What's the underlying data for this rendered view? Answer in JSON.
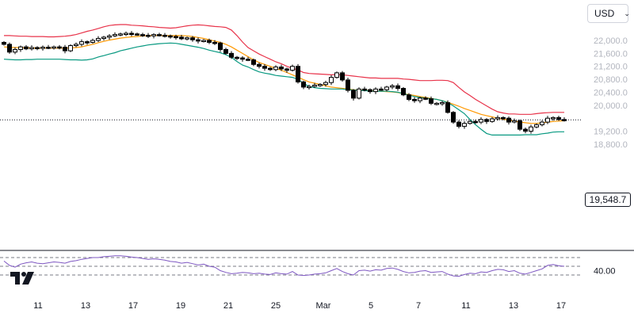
{
  "currency_selector": {
    "value": "USD",
    "icon": "chevron-down-icon"
  },
  "last_price_label": "19,548.7",
  "colors": {
    "candle": "#000000",
    "upper_band": "#e8334a",
    "middle_band": "#ff9800",
    "lower_band": "#089981",
    "rsi_line": "#7e57c2",
    "grid_text": "#b2b5be",
    "divider": "#131722"
  },
  "chart_data": [
    {
      "type": "candlestick",
      "indicator": "Bollinger Bands",
      "y_ticks": [
        "22,000.0",
        "21,600.0",
        "21,200.0",
        "20,800.0",
        "20,400.0",
        "20,000.0",
        "19,200.0",
        "18,800.0"
      ],
      "ylim": [
        18800,
        22400
      ],
      "x_ticks": [
        "11",
        "13",
        "17",
        "19",
        "21",
        "25",
        "Mar",
        "5",
        "7",
        "11",
        "13",
        "17"
      ],
      "last_price": 19548.7,
      "close": [
        21880,
        21640,
        21720,
        21800,
        21740,
        21780,
        21760,
        21790,
        21770,
        21800,
        21790,
        21680,
        21840,
        21880,
        21960,
        21940,
        22000,
        22060,
        22100,
        22140,
        22180,
        22200,
        22220,
        22200,
        22180,
        22160,
        22140,
        22180,
        22160,
        22140,
        22120,
        22100,
        22050,
        22080,
        22020,
        21980,
        22000,
        21940,
        21920,
        21720,
        21600,
        21480,
        21460,
        21420,
        21400,
        21260,
        21200,
        21140,
        21100,
        21180,
        21120,
        21080,
        21200,
        20720,
        20560,
        20580,
        20620,
        20640,
        20700,
        20860,
        21000,
        20780,
        20460,
        20220,
        20500,
        20480,
        20420,
        20500,
        20480,
        20560,
        20600,
        20520,
        20320,
        20180,
        20140,
        20220,
        20200,
        20060,
        20060,
        20080,
        19780,
        19480,
        19350,
        19440,
        19500,
        19480,
        19560,
        19500,
        19580,
        19620,
        19600,
        19480,
        19520,
        19260,
        19200,
        19330,
        19400,
        19480,
        19600,
        19620,
        19560,
        19550
      ],
      "upper_band": [
        22150,
        22150,
        22140,
        22130,
        22130,
        22120,
        22120,
        22120,
        22110,
        22110,
        22120,
        22130,
        22150,
        22180,
        22230,
        22280,
        22320,
        22370,
        22420,
        22460,
        22480,
        22490,
        22490,
        22470,
        22460,
        22450,
        22430,
        22420,
        22400,
        22390,
        22380,
        22390,
        22420,
        22450,
        22470,
        22480,
        22470,
        22450,
        22430,
        22420,
        22400,
        22320,
        22150,
        21950,
        21780,
        21680,
        21580,
        21500,
        21420,
        21340,
        21280,
        21200,
        21140,
        21090,
        21010,
        20980,
        20970,
        20960,
        20950,
        20940,
        20940,
        20940,
        20920,
        20900,
        20880,
        20860,
        20840,
        20840,
        20830,
        20830,
        20830,
        20830,
        20810,
        20800,
        20780,
        20760,
        20760,
        20760,
        20770,
        20770,
        20760,
        20700,
        20550,
        20410,
        20300,
        20180,
        20080,
        19980,
        19880,
        19800,
        19760,
        19730,
        19730,
        19720,
        19720,
        19720,
        19740,
        19760,
        19770,
        19780,
        19780,
        19780
      ],
      "middle_band": [
        21800,
        21790,
        21780,
        21780,
        21770,
        21770,
        21760,
        21760,
        21760,
        21760,
        21760,
        21760,
        21770,
        21780,
        21800,
        21840,
        21880,
        21930,
        21970,
        22010,
        22040,
        22070,
        22090,
        22110,
        22120,
        22140,
        22150,
        22150,
        22150,
        22150,
        22150,
        22150,
        22150,
        22140,
        22120,
        22090,
        22060,
        22020,
        21980,
        21940,
        21880,
        21800,
        21700,
        21600,
        21500,
        21400,
        21320,
        21260,
        21200,
        21140,
        21080,
        21010,
        20940,
        20860,
        20790,
        20720,
        20680,
        20640,
        20600,
        20560,
        20540,
        20520,
        20500,
        20480,
        20470,
        20460,
        20450,
        20440,
        20430,
        20420,
        20410,
        20390,
        20360,
        20330,
        20300,
        20270,
        20240,
        20210,
        20180,
        20140,
        20090,
        20030,
        19970,
        19900,
        19840,
        19780,
        19720,
        19680,
        19640,
        19600,
        19570,
        19540,
        19510,
        19480,
        19460,
        19440,
        19440,
        19460,
        19480,
        19500,
        19510,
        19520
      ],
      "lower_band": [
        21420,
        21410,
        21400,
        21400,
        21410,
        21410,
        21420,
        21420,
        21420,
        21420,
        21420,
        21410,
        21400,
        21400,
        21390,
        21400,
        21430,
        21490,
        21530,
        21580,
        21620,
        21680,
        21720,
        21760,
        21800,
        21830,
        21860,
        21880,
        21900,
        21910,
        21920,
        21910,
        21880,
        21850,
        21820,
        21790,
        21750,
        21700,
        21660,
        21620,
        21560,
        21480,
        21350,
        21240,
        21180,
        21100,
        21030,
        20990,
        20960,
        20920,
        20900,
        20880,
        20860,
        20800,
        20680,
        20580,
        20540,
        20520,
        20510,
        20500,
        20500,
        20500,
        20480,
        20470,
        20460,
        20450,
        20440,
        20430,
        20430,
        20430,
        20420,
        20400,
        20360,
        20310,
        20270,
        20240,
        20220,
        20200,
        20180,
        20140,
        20080,
        19980,
        19860,
        19740,
        19560,
        19400,
        19260,
        19130,
        19080,
        19080,
        19080,
        19080,
        19080,
        19080,
        19090,
        19090,
        19090,
        19120,
        19140,
        19170,
        19180,
        19180
      ]
    },
    {
      "type": "line",
      "indicator": "RSI",
      "y_ticks": [
        "40.00"
      ],
      "guides": [
        70,
        50,
        30
      ],
      "ylim": [
        20,
        80
      ],
      "values": [
        62,
        52,
        48,
        55,
        58,
        60,
        57,
        56,
        58,
        60,
        59,
        57,
        61,
        63,
        66,
        68,
        70,
        70,
        72,
        73,
        74,
        74,
        73,
        71,
        70,
        68,
        66,
        67,
        66,
        64,
        61,
        60,
        57,
        59,
        56,
        53,
        55,
        50,
        48,
        40,
        36,
        33,
        34,
        36,
        35,
        33,
        34,
        32,
        31,
        35,
        33,
        32,
        38,
        30,
        29,
        30,
        32,
        33,
        35,
        40,
        45,
        38,
        33,
        30,
        40,
        41,
        39,
        42,
        41,
        45,
        46,
        43,
        38,
        35,
        36,
        39,
        40,
        36,
        37,
        38,
        32,
        28,
        27,
        31,
        34,
        33,
        37,
        36,
        40,
        43,
        42,
        38,
        40,
        34,
        32,
        36,
        40,
        44,
        52,
        54,
        51,
        50
      ]
    }
  ]
}
